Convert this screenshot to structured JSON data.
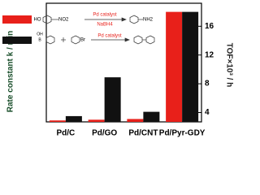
{
  "chart_data": {
    "type": "bar",
    "y_label": "Rate constant k / min",
    "y2_label": "TOF×10³ / h",
    "categories": [
      "Pd/C",
      "Pd/GO",
      "Pd/CNT",
      "Pd/Pyr-GDY"
    ],
    "series": [
      {
        "color": "#e8201a",
        "values": [
          2.9,
          3.0,
          3.1,
          18.0
        ]
      },
      {
        "color": "#111111",
        "axis": "y2",
        "values": [
          3.5,
          8.9,
          4.1,
          18.0
        ]
      }
    ],
    "ylim": [
      2.7,
      19.2
    ],
    "y2lim": [
      2.7,
      19.2
    ],
    "y2ticks": [
      4,
      8,
      12,
      16
    ],
    "annotations": [
      "HO",
      "NO2",
      "Pd catalyst",
      "NaBH4",
      "NH2",
      "B",
      "OH",
      "Br",
      "Pd catalyst"
    ]
  }
}
